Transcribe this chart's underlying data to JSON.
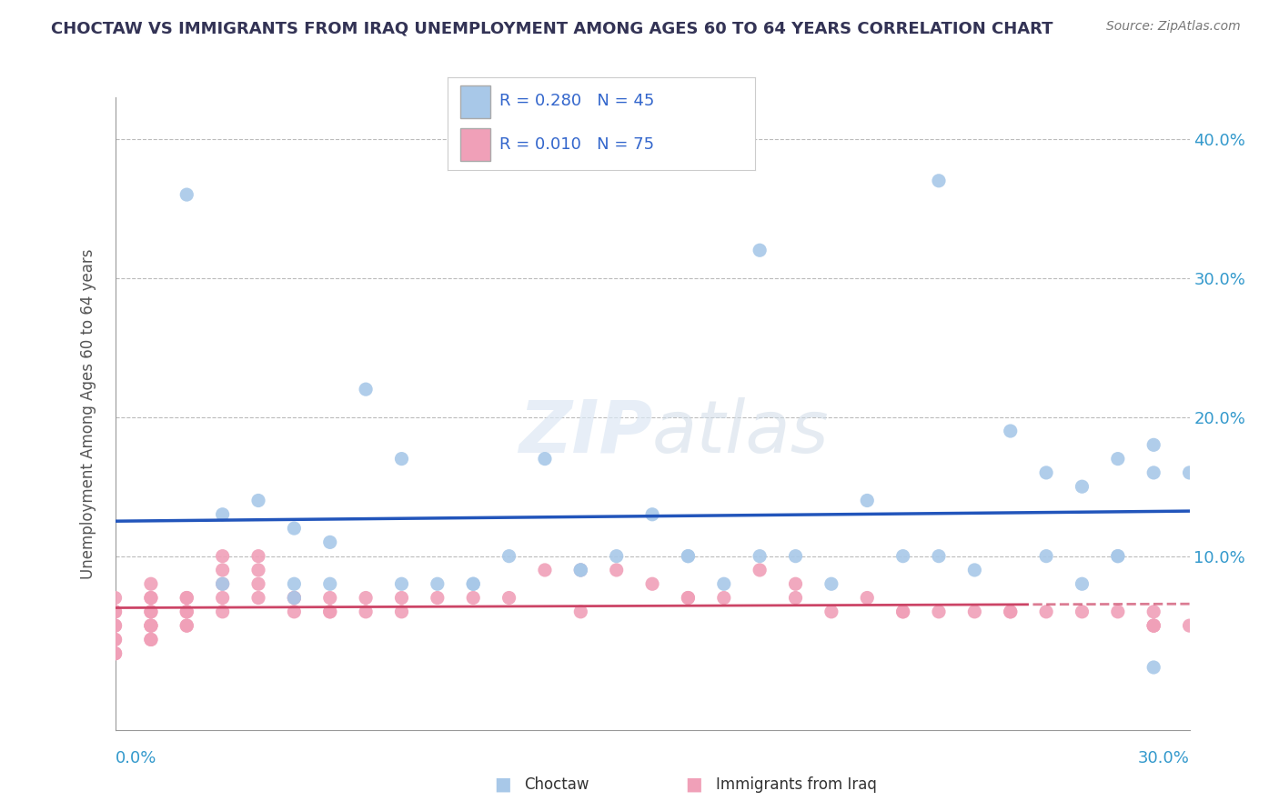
{
  "title": "CHOCTAW VS IMMIGRANTS FROM IRAQ UNEMPLOYMENT AMONG AGES 60 TO 64 YEARS CORRELATION CHART",
  "source": "Source: ZipAtlas.com",
  "ylabel": "Unemployment Among Ages 60 to 64 years",
  "xlim": [
    0.0,
    0.3
  ],
  "ylim": [
    -0.025,
    0.43
  ],
  "choctaw_color": "#a8c8e8",
  "iraq_color": "#f0a0b8",
  "choctaw_line_color": "#2255bb",
  "iraq_line_color": "#cc4466",
  "background_color": "#ffffff",
  "watermark_zip": "ZIP",
  "watermark_atlas": "atlas",
  "choctaw_x": [
    0.02,
    0.03,
    0.04,
    0.05,
    0.05,
    0.06,
    0.07,
    0.08,
    0.09,
    0.1,
    0.11,
    0.12,
    0.13,
    0.14,
    0.15,
    0.16,
    0.17,
    0.18,
    0.19,
    0.2,
    0.21,
    0.22,
    0.23,
    0.24,
    0.25,
    0.26,
    0.27,
    0.27,
    0.28,
    0.28,
    0.29,
    0.29,
    0.29,
    0.3,
    0.03,
    0.05,
    0.06,
    0.08,
    0.1,
    0.13,
    0.16,
    0.18,
    0.23,
    0.26,
    0.28
  ],
  "choctaw_y": [
    0.36,
    0.13,
    0.14,
    0.12,
    0.08,
    0.11,
    0.22,
    0.17,
    0.08,
    0.08,
    0.1,
    0.17,
    0.09,
    0.1,
    0.13,
    0.1,
    0.08,
    0.32,
    0.1,
    0.08,
    0.14,
    0.1,
    0.37,
    0.09,
    0.19,
    0.16,
    0.15,
    0.08,
    0.17,
    0.1,
    0.18,
    0.16,
    0.02,
    0.16,
    0.08,
    0.07,
    0.08,
    0.08,
    0.08,
    0.09,
    0.1,
    0.1,
    0.1,
    0.1,
    0.1
  ],
  "iraq_x": [
    0.0,
    0.0,
    0.0,
    0.0,
    0.0,
    0.0,
    0.0,
    0.0,
    0.0,
    0.0,
    0.01,
    0.01,
    0.01,
    0.01,
    0.01,
    0.01,
    0.01,
    0.01,
    0.01,
    0.01,
    0.02,
    0.02,
    0.02,
    0.02,
    0.02,
    0.02,
    0.03,
    0.03,
    0.03,
    0.03,
    0.03,
    0.04,
    0.04,
    0.04,
    0.04,
    0.05,
    0.05,
    0.05,
    0.06,
    0.06,
    0.06,
    0.07,
    0.07,
    0.08,
    0.08,
    0.09,
    0.1,
    0.11,
    0.12,
    0.13,
    0.14,
    0.15,
    0.16,
    0.17,
    0.18,
    0.19,
    0.2,
    0.21,
    0.22,
    0.23,
    0.24,
    0.25,
    0.26,
    0.27,
    0.28,
    0.29,
    0.29,
    0.29,
    0.29,
    0.3,
    0.13,
    0.16,
    0.19,
    0.22,
    0.25
  ],
  "iraq_y": [
    0.07,
    0.06,
    0.06,
    0.05,
    0.05,
    0.04,
    0.04,
    0.03,
    0.03,
    0.03,
    0.08,
    0.07,
    0.07,
    0.06,
    0.06,
    0.05,
    0.05,
    0.05,
    0.04,
    0.04,
    0.07,
    0.07,
    0.06,
    0.06,
    0.05,
    0.05,
    0.1,
    0.09,
    0.08,
    0.07,
    0.06,
    0.1,
    0.09,
    0.08,
    0.07,
    0.07,
    0.07,
    0.06,
    0.07,
    0.06,
    0.06,
    0.07,
    0.06,
    0.07,
    0.06,
    0.07,
    0.07,
    0.07,
    0.09,
    0.09,
    0.09,
    0.08,
    0.07,
    0.07,
    0.09,
    0.07,
    0.06,
    0.07,
    0.06,
    0.06,
    0.06,
    0.06,
    0.06,
    0.06,
    0.06,
    0.06,
    0.05,
    0.05,
    0.05,
    0.05,
    0.06,
    0.07,
    0.08,
    0.06,
    0.06
  ]
}
